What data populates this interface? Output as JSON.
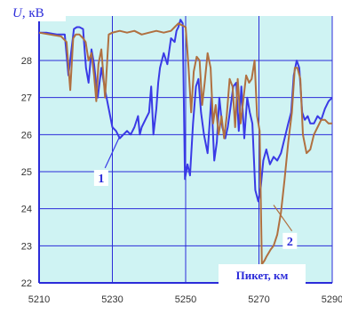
{
  "chart_data": {
    "type": "line",
    "ylabel_symbol": "U",
    "ylabel_unit": ", кВ",
    "xlabel": "Пикет, км",
    "xlim": [
      5210,
      5290
    ],
    "ylim": [
      22,
      29.2
    ],
    "xticks": [
      5210,
      5230,
      5250,
      5270,
      5290
    ],
    "yticks": [
      22,
      23,
      24,
      25,
      26,
      27,
      28
    ],
    "grid": true,
    "colors": {
      "background": "#cff3f3",
      "grid": "#2b2bd9",
      "axes": "#2b2bd9",
      "series_1": "#3a3ae6",
      "series_2": "#b07040",
      "label_text": "#2b2bd9"
    },
    "series": [
      {
        "name": "1",
        "x": [
          5209.5,
          5212,
          5215,
          5217,
          5218,
          5219.5,
          5220.3,
          5221,
          5222,
          5222.8,
          5223.5,
          5224.3,
          5225,
          5226,
          5227,
          5228,
          5229,
          5230,
          5231,
          5232,
          5233,
          5234,
          5235,
          5236,
          5237,
          5237.5,
          5238,
          5239,
          5240,
          5240.6,
          5241.2,
          5242,
          5242.5,
          5243,
          5243.5,
          5244,
          5245,
          5246,
          5247,
          5247.5,
          5248,
          5248.6,
          5249.2,
          5249.8,
          5250.5,
          5251.2,
          5252,
          5252.8,
          5253.5,
          5254.2,
          5255,
          5256,
          5257,
          5257.8,
          5258.5,
          5259.2,
          5260,
          5260.8,
          5261.5,
          5262.2,
          5263,
          5263.8,
          5264.5,
          5265.2,
          5266,
          5266.8,
          5267.5,
          5268.2,
          5269,
          5269.8,
          5270.5,
          5271.2,
          5272,
          5273,
          5274,
          5275,
          5276,
          5277,
          5278,
          5278.8,
          5279.5,
          5280.3,
          5281,
          5281.8,
          5282.5,
          5283.3,
          5284,
          5285,
          5286,
          5287,
          5288,
          5289,
          5290
        ],
        "y": [
          28.75,
          28.75,
          28.7,
          28.7,
          27.6,
          28.85,
          28.9,
          28.9,
          28.85,
          27.8,
          27.4,
          28.3,
          27.9,
          27.0,
          27.8,
          27.2,
          26.7,
          26.2,
          26.1,
          25.9,
          26.0,
          26.1,
          26.0,
          26.2,
          26.5,
          26.0,
          26.2,
          26.4,
          26.6,
          27.3,
          26.0,
          26.7,
          27.4,
          27.8,
          28.0,
          28.2,
          27.9,
          28.6,
          28.5,
          28.8,
          28.9,
          29.1,
          29.0,
          24.8,
          25.2,
          24.9,
          26.3,
          27.3,
          27.5,
          26.6,
          26.0,
          25.5,
          27.0,
          25.3,
          25.8,
          27.0,
          26.2,
          25.9,
          26.2,
          26.7,
          27.3,
          27.4,
          26.1,
          27.3,
          25.9,
          27.0,
          26.6,
          26.3,
          24.5,
          24.2,
          24.6,
          25.3,
          25.6,
          25.2,
          25.4,
          25.3,
          25.5,
          25.9,
          26.3,
          26.6,
          27.6,
          28.0,
          27.8,
          26.6,
          26.4,
          26.5,
          26.3,
          26.3,
          26.5,
          26.4,
          26.7,
          26.9,
          27.0
        ]
      },
      {
        "name": "2",
        "x": [
          5209.5,
          5213,
          5216,
          5217.5,
          5218.5,
          5219.3,
          5220,
          5221,
          5222,
          5222.7,
          5223.5,
          5224.3,
          5225,
          5225.6,
          5226.2,
          5227,
          5228,
          5229,
          5230,
          5232,
          5234,
          5236,
          5238,
          5240,
          5242,
          5244,
          5246,
          5247,
          5248,
          5249,
          5250,
          5250.8,
          5251.5,
          5252.2,
          5253,
          5253.8,
          5254.5,
          5255.2,
          5256,
          5256.8,
          5257.5,
          5258.2,
          5259,
          5259.8,
          5260.5,
          5261.2,
          5262,
          5262.8,
          5263.5,
          5264.2,
          5265,
          5265.8,
          5266.5,
          5267.3,
          5268,
          5268.8,
          5269.5,
          5270.2,
          5270.8,
          5271.5,
          5272,
          5272.6,
          5273.2,
          5274,
          5275,
          5276,
          5277,
          5278,
          5279,
          5279.8,
          5280.5,
          5281.3,
          5282,
          5283,
          5284,
          5285,
          5286,
          5287,
          5288,
          5289,
          5290
        ],
        "y": [
          28.75,
          28.7,
          28.65,
          28.5,
          27.2,
          28.6,
          28.7,
          28.7,
          28.6,
          28.5,
          28.0,
          28.2,
          27.6,
          26.9,
          27.9,
          28.3,
          27.0,
          28.7,
          28.75,
          28.8,
          28.75,
          28.8,
          28.7,
          28.75,
          28.8,
          28.75,
          28.8,
          28.9,
          29.0,
          28.95,
          28.9,
          27.8,
          26.6,
          27.7,
          28.1,
          28.0,
          26.8,
          27.4,
          28.2,
          27.8,
          26.3,
          26.8,
          26.0,
          26.5,
          25.9,
          26.5,
          27.5,
          27.3,
          26.2,
          27.5,
          26.3,
          27.0,
          27.6,
          27.4,
          27.5,
          28.0,
          26.5,
          26.1,
          22.5,
          22.6,
          22.7,
          22.8,
          22.9,
          23.0,
          23.3,
          23.9,
          24.8,
          25.8,
          26.6,
          27.8,
          27.8,
          27.5,
          26.0,
          25.5,
          25.6,
          26.0,
          26.2,
          26.4,
          26.4,
          26.3,
          26.3
        ]
      }
    ],
    "series_labels": [
      "1",
      "2"
    ]
  }
}
